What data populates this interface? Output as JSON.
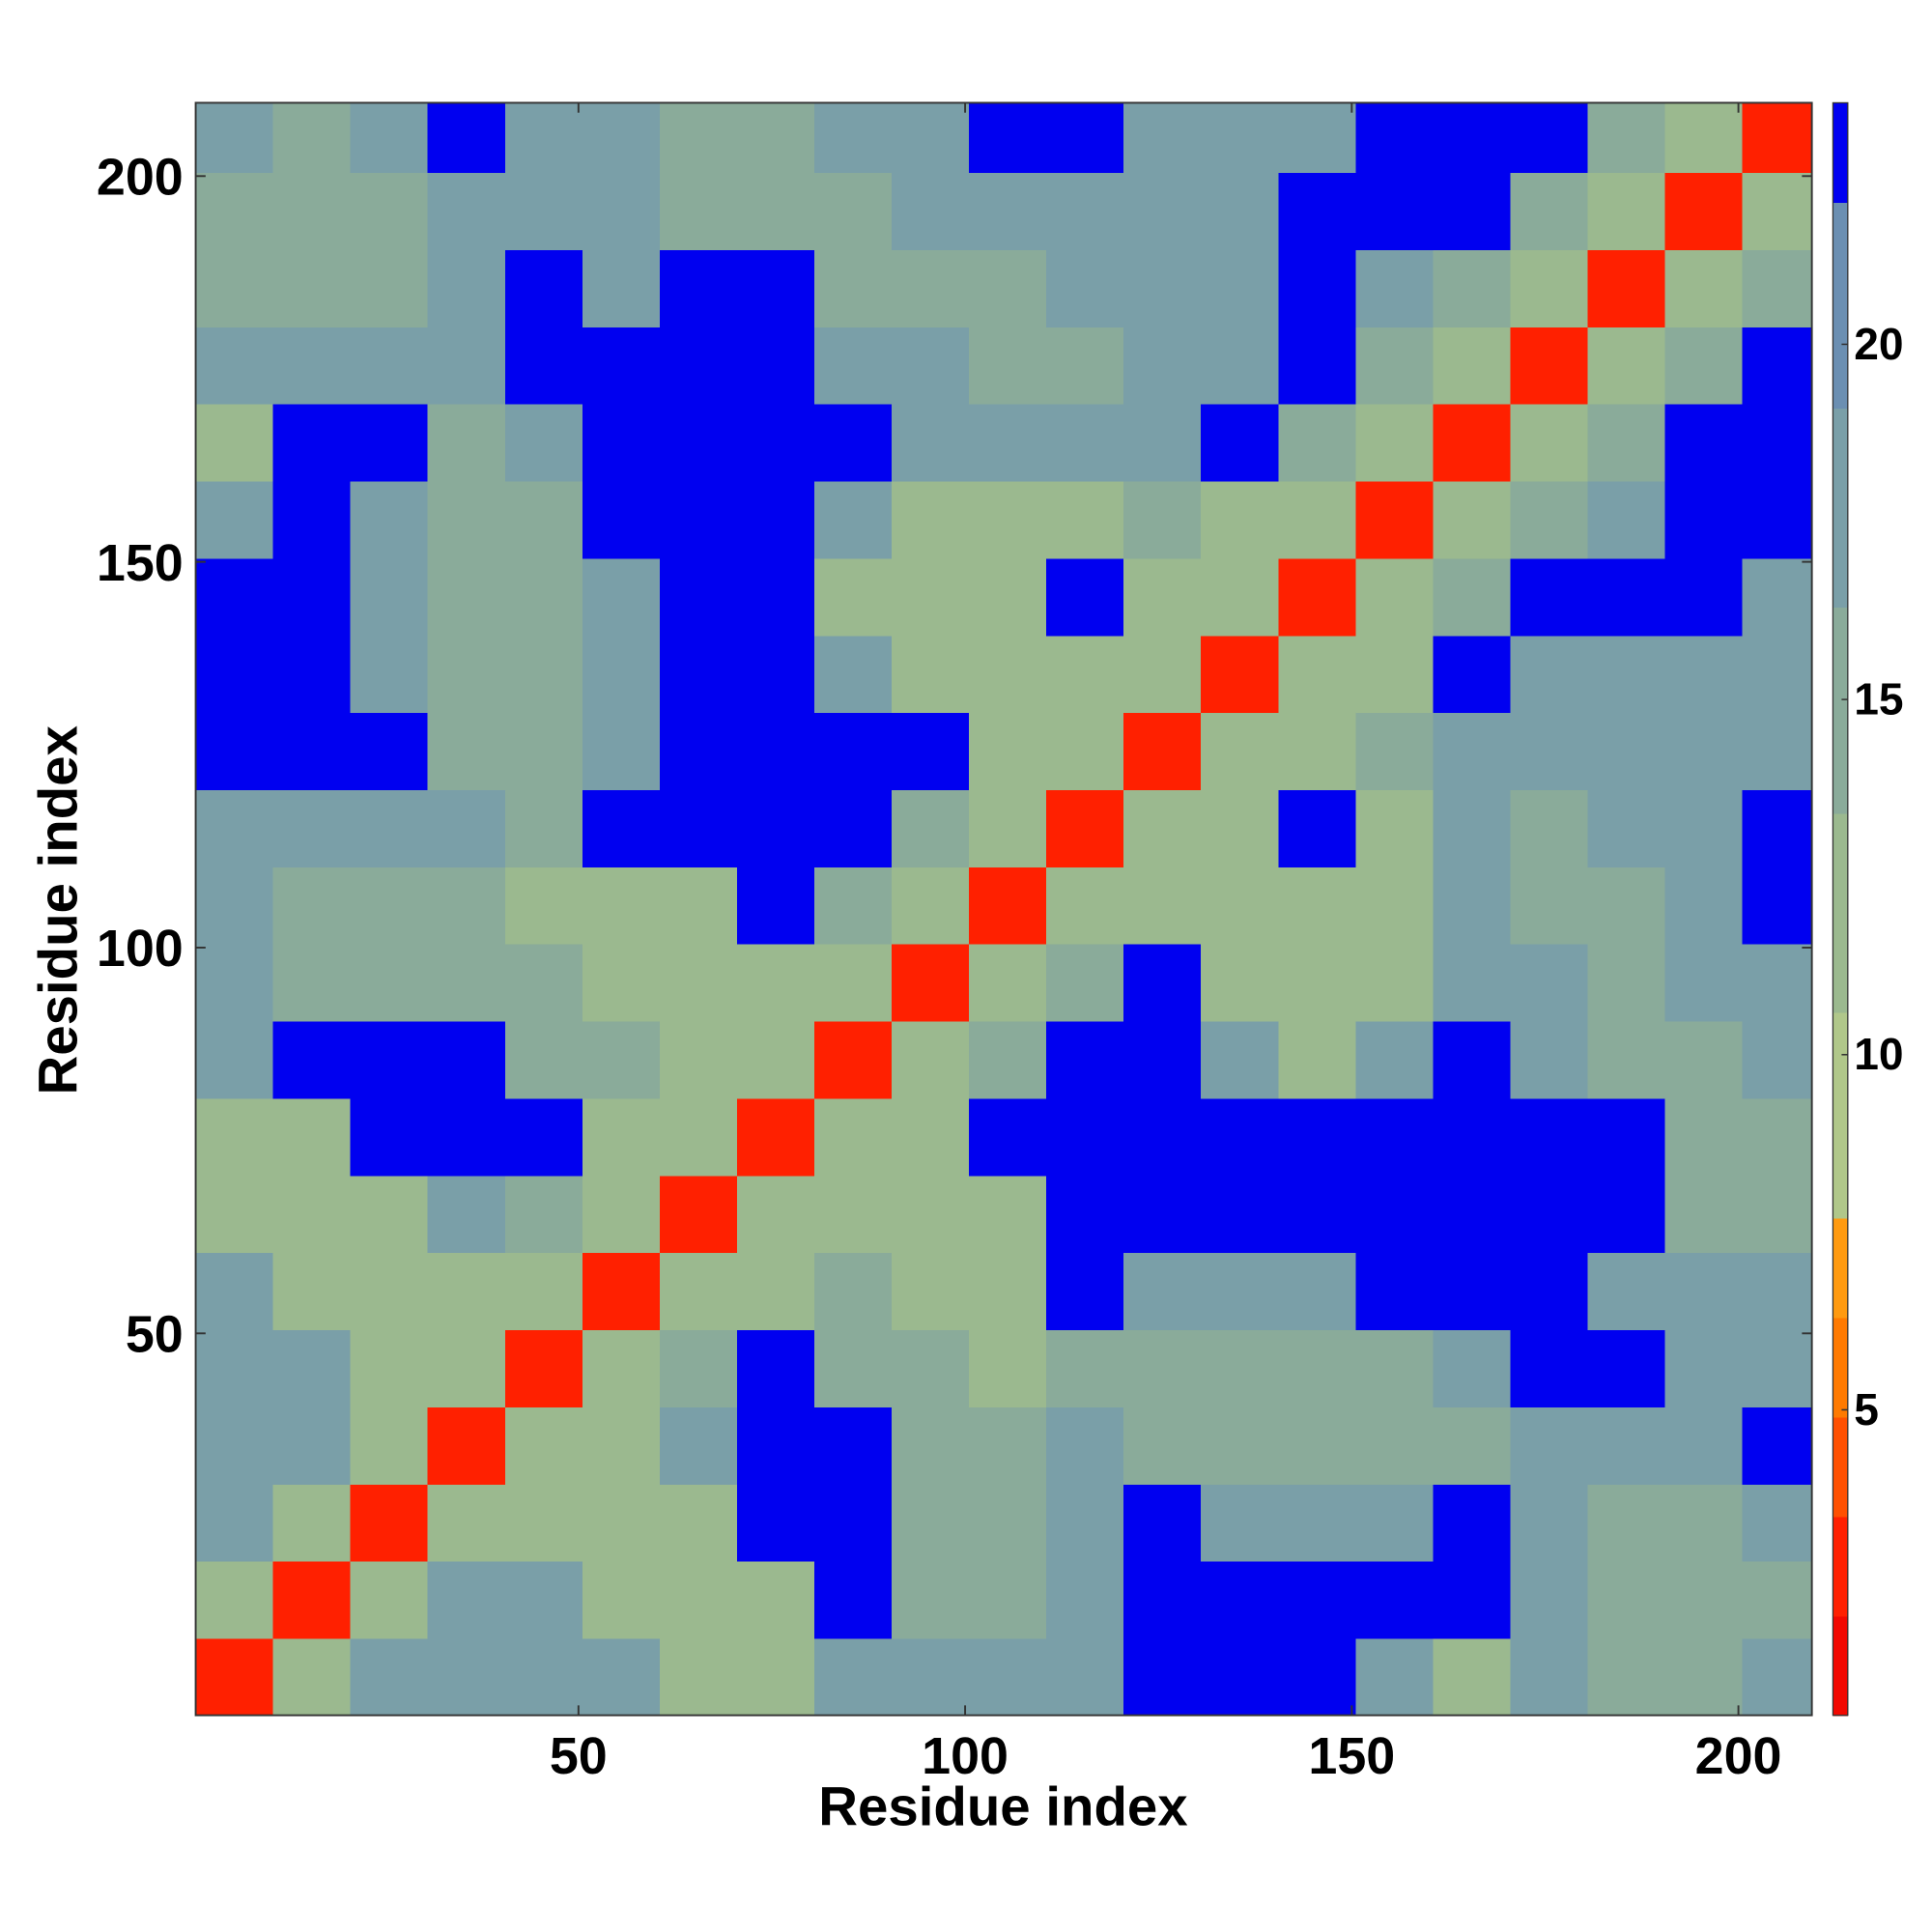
{
  "chart_data": {
    "type": "heatmap",
    "xlabel": "Residue index",
    "ylabel": "Residue index",
    "xbins": [
      0.5,
      10.5,
      20.5,
      30.5,
      40.5,
      50.5,
      60.5,
      70.5,
      80.5,
      90.5,
      100.5,
      110.5,
      120.5,
      130.5,
      140.5,
      150.5,
      160.5,
      170.5,
      180.5,
      190.5,
      200.5,
      209.5
    ],
    "ybins": [
      0.5,
      10.5,
      20.5,
      30.5,
      40.5,
      50.5,
      60.5,
      70.5,
      80.5,
      90.5,
      100.5,
      110.5,
      120.5,
      130.5,
      140.5,
      150.5,
      160.5,
      170.5,
      180.5,
      190.5,
      200.5,
      209.5
    ],
    "values": [
      [
        3,
        12,
        17,
        17,
        19,
        18,
        13,
        13,
        18,
        19,
        19,
        19,
        23,
        23,
        23,
        18,
        13,
        18,
        14,
        14,
        18
      ],
      [
        12,
        3,
        12,
        17,
        19,
        13,
        13,
        13,
        23,
        14,
        14,
        19,
        23,
        23,
        23,
        23,
        23,
        17,
        14,
        14,
        14
      ],
      [
        17,
        12,
        3,
        12,
        13,
        13,
        13,
        23,
        23,
        14,
        14,
        19,
        23,
        18,
        18,
        18,
        23,
        18,
        14,
        14,
        18
      ],
      [
        17,
        17,
        12,
        3,
        12,
        13,
        18,
        23,
        23,
        14,
        14,
        19,
        14,
        14,
        14,
        14,
        14,
        18,
        18,
        18,
        23
      ],
      [
        19,
        19,
        13,
        12,
        3,
        12,
        14,
        23,
        16,
        14,
        13,
        16,
        14,
        14,
        14,
        14,
        18,
        23,
        23,
        19,
        19
      ],
      [
        18,
        13,
        13,
        13,
        12,
        3,
        12,
        13,
        15,
        13,
        13,
        23,
        18,
        18,
        18,
        23,
        23,
        23,
        19,
        19,
        19
      ],
      [
        13,
        13,
        13,
        18,
        14,
        12,
        3,
        12,
        12,
        13,
        13,
        23,
        23,
        23,
        23,
        23,
        23,
        23,
        23,
        14,
        14
      ],
      [
        13,
        13,
        23,
        23,
        23,
        13,
        12,
        3,
        12,
        13,
        23,
        23,
        23,
        23,
        23,
        23,
        23,
        23,
        23,
        14,
        14
      ],
      [
        18,
        23,
        23,
        23,
        16,
        15,
        12,
        12,
        3,
        12,
        14,
        23,
        23,
        18,
        13,
        18,
        23,
        19,
        14,
        14,
        19
      ],
      [
        19,
        14,
        14,
        14,
        14,
        13,
        13,
        13,
        12,
        3,
        12,
        14,
        23,
        13,
        13,
        13,
        18,
        19,
        14,
        19,
        19
      ],
      [
        19,
        14,
        14,
        14,
        13,
        13,
        13,
        23,
        14,
        12,
        3,
        12,
        12,
        13,
        13,
        13,
        18,
        14,
        14,
        19,
        23
      ],
      [
        19,
        19,
        19,
        19,
        16,
        23,
        23,
        23,
        23,
        14,
        12,
        3,
        12,
        12,
        23,
        13,
        18,
        14,
        19,
        19,
        23
      ],
      [
        23,
        23,
        23,
        14,
        14,
        18,
        23,
        23,
        23,
        23,
        12,
        12,
        3,
        12,
        13,
        14,
        18,
        19,
        19,
        19,
        19
      ],
      [
        23,
        23,
        18,
        14,
        14,
        18,
        23,
        23,
        18,
        13,
        13,
        12,
        12,
        3,
        12,
        12,
        23,
        19,
        19,
        19,
        18
      ],
      [
        23,
        23,
        18,
        14,
        14,
        18,
        23,
        23,
        13,
        13,
        13,
        23,
        13,
        12,
        3,
        12,
        15,
        23,
        23,
        23,
        18
      ],
      [
        18,
        23,
        18,
        14,
        14,
        23,
        23,
        23,
        18,
        13,
        13,
        13,
        14,
        12,
        12,
        3,
        12,
        15,
        17,
        23,
        23
      ],
      [
        13,
        23,
        23,
        14,
        18,
        23,
        23,
        23,
        23,
        18,
        18,
        18,
        18,
        23,
        15,
        12,
        3,
        12,
        15,
        23,
        23
      ],
      [
        18,
        17,
        18,
        18,
        23,
        23,
        23,
        23,
        19,
        19,
        14,
        14,
        19,
        19,
        23,
        15,
        12,
        3,
        12,
        16,
        23
      ],
      [
        14,
        14,
        14,
        18,
        23,
        19,
        23,
        23,
        14,
        14,
        14,
        19,
        19,
        19,
        23,
        17,
        15,
        12,
        3,
        12,
        16
      ],
      [
        14,
        14,
        14,
        18,
        19,
        19,
        14,
        14,
        14,
        19,
        19,
        19,
        19,
        19,
        23,
        23,
        23,
        16,
        12,
        3,
        12
      ],
      [
        18,
        14,
        18,
        23,
        19,
        19,
        14,
        14,
        19,
        19,
        23,
        23,
        19,
        18,
        18,
        23,
        23,
        23,
        16,
        12,
        3
      ]
    ],
    "xlim": [
      0.5,
      209.5
    ],
    "ylim": [
      0.5,
      209.5
    ],
    "xticks": [
      50,
      100,
      150,
      200
    ],
    "yticks": [
      50,
      100,
      150,
      200
    ],
    "colorbar": {
      "clim": [
        0.7,
        23.4
      ],
      "ticks": [
        5,
        10,
        15,
        20
      ],
      "levels": [
        0.7,
        2.1,
        3.5,
        4.9,
        6.3,
        7.7,
        10.6,
        13.4,
        16.3,
        19.1,
        22,
        23.4
      ],
      "colors": [
        "#f20800",
        "#ff2000",
        "#ff5000",
        "#ff7a00",
        "#ff9a10",
        "#b0c78a",
        "#9bb98f",
        "#8aab9a",
        "#7a9fa8",
        "#6b8fb2",
        "#0000f0"
      ]
    }
  }
}
